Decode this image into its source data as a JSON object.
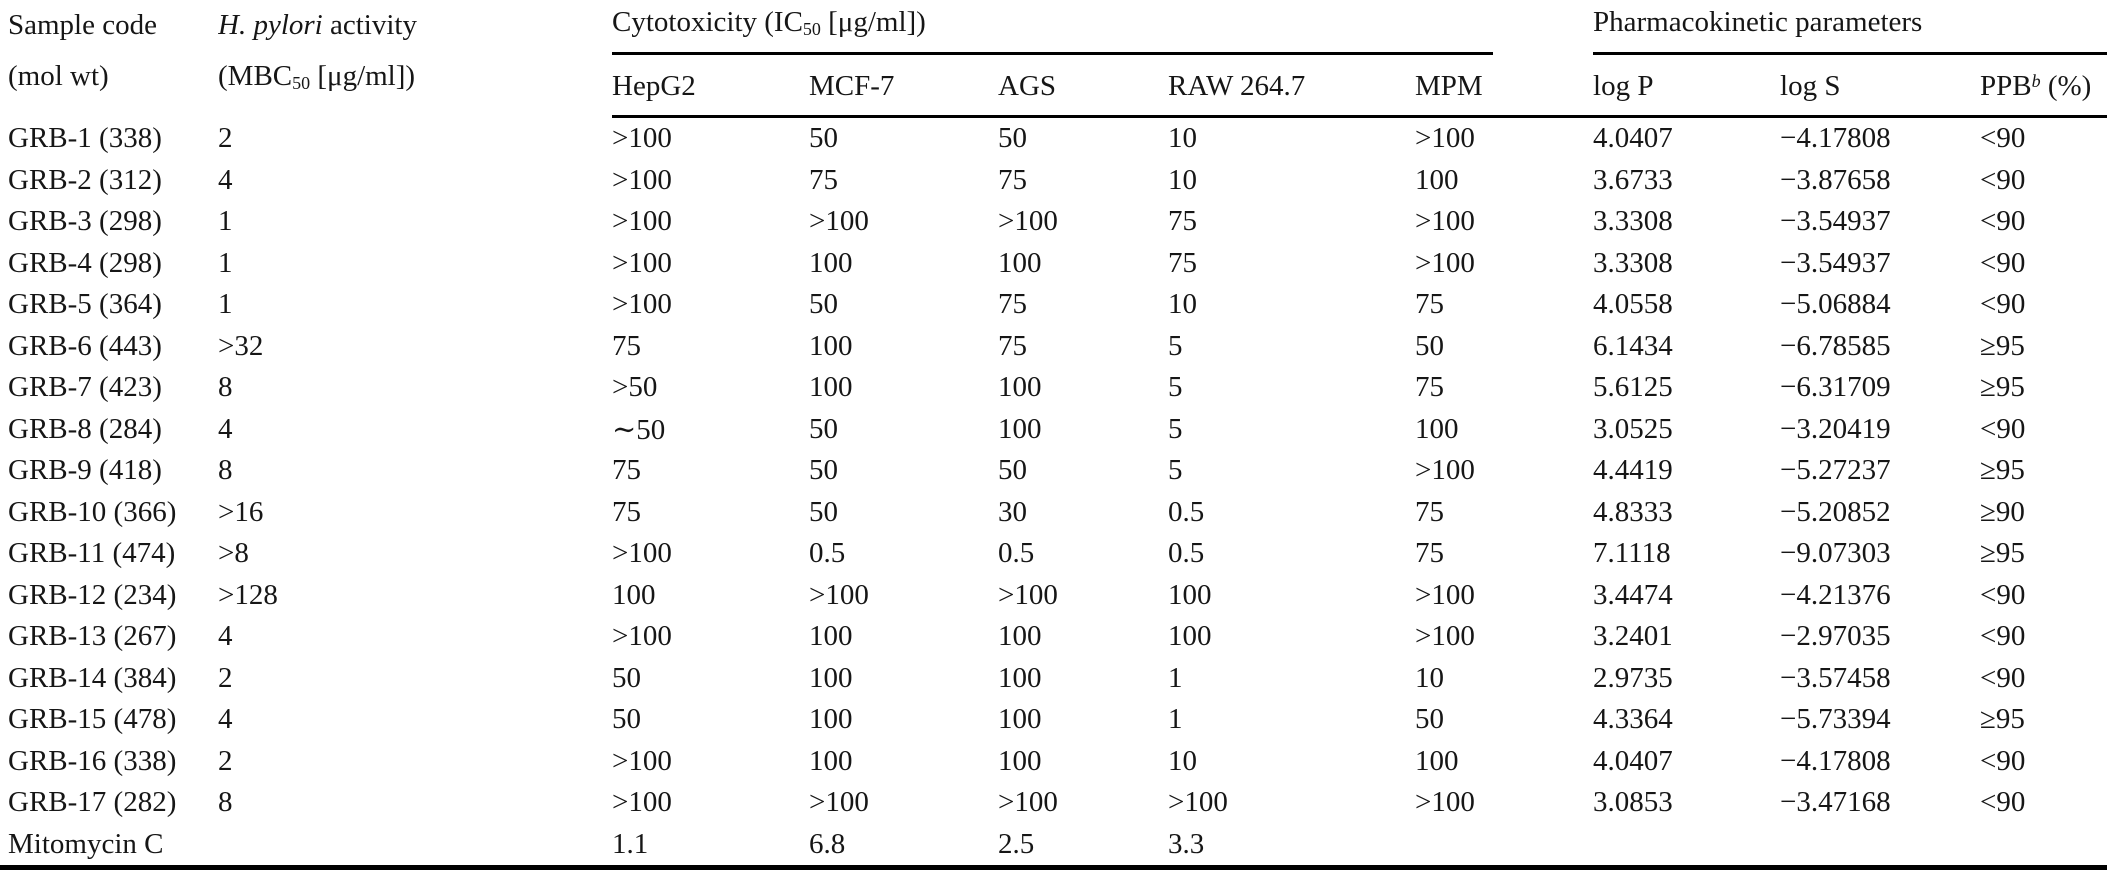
{
  "colors": {
    "text": "#161616",
    "rule": "#000000",
    "background": "#ffffff"
  },
  "table": {
    "headers": {
      "sample_code": {
        "line1": "Sample code",
        "line2": "(mol wt)"
      },
      "activity": {
        "line1_italic": "H. pylori",
        "line1_rest": " activity",
        "line2_pre": "(MBC",
        "line2_sub": "50",
        "line2_post": " [μg/ml])"
      },
      "cytotoxicity_group": {
        "pre": "Cytotoxicity (IC",
        "sub": "50",
        "post": " [μg/ml])"
      },
      "pharmacokinetic_group": "Pharmacokinetic parameters",
      "cell_line_cols": {
        "hepg2": "HepG2",
        "mcf7": "MCF-7",
        "ags": "AGS",
        "raw": "RAW 264.7",
        "mpm": "MPM"
      },
      "pk_cols": {
        "logp": "log P",
        "logs": "log S",
        "ppb_pre": "PPB",
        "ppb_sup": "b",
        "ppb_post": " (%)"
      }
    },
    "rows": [
      [
        "GRB-1 (338)",
        "2",
        ">100",
        "50",
        "50",
        "10",
        ">100",
        "4.0407",
        "−4.17808",
        "<90"
      ],
      [
        "GRB-2 (312)",
        "4",
        ">100",
        "75",
        "75",
        "10",
        "100",
        "3.6733",
        "−3.87658",
        "<90"
      ],
      [
        "GRB-3 (298)",
        "1",
        ">100",
        ">100",
        ">100",
        "75",
        ">100",
        "3.3308",
        "−3.54937",
        "<90"
      ],
      [
        "GRB-4 (298)",
        "1",
        ">100",
        "100",
        "100",
        "75",
        ">100",
        "3.3308",
        "−3.54937",
        "<90"
      ],
      [
        "GRB-5 (364)",
        "1",
        ">100",
        "50",
        "75",
        "10",
        "75",
        "4.0558",
        "−5.06884",
        "<90"
      ],
      [
        "GRB-6 (443)",
        ">32",
        "75",
        "100",
        "75",
        "5",
        "50",
        "6.1434",
        "−6.78585",
        "≥95"
      ],
      [
        "GRB-7 (423)",
        "8",
        ">50",
        "100",
        "100",
        "5",
        "75",
        "5.6125",
        "−6.31709",
        "≥95"
      ],
      [
        "GRB-8 (284)",
        "4",
        "∼50",
        "50",
        "100",
        "5",
        "100",
        "3.0525",
        "−3.20419",
        "<90"
      ],
      [
        "GRB-9 (418)",
        "8",
        "75",
        "50",
        "50",
        "5",
        ">100",
        "4.4419",
        "−5.27237",
        "≥95"
      ],
      [
        "GRB-10 (366)",
        ">16",
        "75",
        "50",
        "30",
        "0.5",
        "75",
        "4.8333",
        "−5.20852",
        "≥90"
      ],
      [
        "GRB-11 (474)",
        ">8",
        ">100",
        "0.5",
        "0.5",
        "0.5",
        "75",
        "7.1118",
        "−9.07303",
        "≥95"
      ],
      [
        "GRB-12 (234)",
        ">128",
        "100",
        ">100",
        ">100",
        "100",
        ">100",
        "3.4474",
        "−4.21376",
        "<90"
      ],
      [
        "GRB-13 (267)",
        "4",
        ">100",
        "100",
        "100",
        "100",
        ">100",
        "3.2401",
        "−2.97035",
        "<90"
      ],
      [
        "GRB-14 (384)",
        "2",
        "50",
        "100",
        "100",
        "1",
        "10",
        "2.9735",
        "−3.57458",
        "<90"
      ],
      [
        "GRB-15 (478)",
        "4",
        "50",
        "100",
        "100",
        "1",
        "50",
        "4.3364",
        "−5.73394",
        "≥95"
      ],
      [
        "GRB-16 (338)",
        "2",
        ">100",
        "100",
        "100",
        "10",
        "100",
        "4.0407",
        "−4.17808",
        "<90"
      ],
      [
        "GRB-17 (282)",
        "8",
        ">100",
        ">100",
        ">100",
        ">100",
        ">100",
        "3.0853",
        "−3.47168",
        "<90"
      ],
      [
        "Mitomycin C",
        "",
        "1.1",
        "6.8",
        "2.5",
        "3.3",
        "",
        "",
        "",
        ""
      ]
    ]
  }
}
